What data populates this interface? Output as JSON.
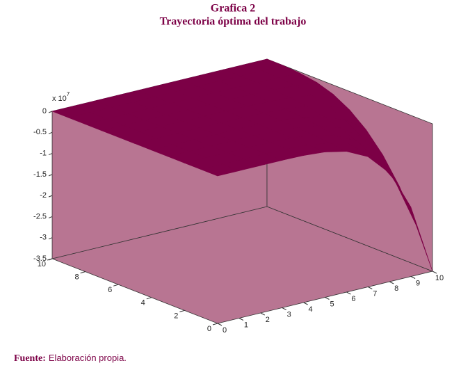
{
  "chart_data": {
    "type": "surface",
    "title": "Grafica 2",
    "subtitle": "Trayectoria óptima del trabajo",
    "z_multiplier": {
      "base": "x 10",
      "exponent": "7"
    },
    "x": [
      0,
      1,
      2,
      3,
      4,
      5,
      6,
      7,
      8,
      9,
      10
    ],
    "y": [
      0,
      1,
      2,
      3,
      4,
      5,
      6,
      7,
      8,
      9,
      10
    ],
    "z": [
      [
        0,
        0,
        0,
        0,
        -0.01,
        -0.05,
        -0.16,
        -0.41,
        -0.92,
        -1.86,
        -3.5
      ],
      [
        0,
        0,
        0,
        0,
        -0.01,
        -0.04,
        -0.12,
        -0.3,
        -0.67,
        -1.36,
        -2.55
      ],
      [
        0,
        0,
        0,
        0,
        -0.01,
        -0.03,
        -0.08,
        -0.21,
        -0.47,
        -0.95,
        -1.79
      ],
      [
        0,
        0,
        0,
        0,
        0,
        -0.02,
        -0.06,
        -0.14,
        -0.31,
        -0.64,
        -1.2
      ],
      [
        0,
        0,
        0,
        0,
        0,
        -0.01,
        -0.04,
        -0.09,
        -0.2,
        -0.4,
        -0.76
      ],
      [
        0,
        0,
        0,
        0,
        0,
        -0.01,
        -0.02,
        -0.05,
        -0.11,
        -0.23,
        -0.44
      ],
      [
        0,
        0,
        0,
        0,
        0,
        0,
        -0.01,
        -0.03,
        -0.06,
        -0.12,
        -0.22
      ],
      [
        0,
        0,
        0,
        0,
        0,
        0,
        0,
        -0.01,
        -0.02,
        -0.05,
        -0.09
      ],
      [
        0,
        0,
        0,
        0,
        0,
        0,
        0,
        0,
        -0.01,
        -0.01,
        -0.03
      ],
      [
        0,
        0,
        0,
        0,
        0,
        0,
        0,
        0,
        0,
        0,
        0
      ],
      [
        0,
        0,
        0,
        0,
        0,
        0,
        0,
        0,
        0,
        0,
        0
      ]
    ],
    "xlim": [
      0,
      10
    ],
    "ylim": [
      0,
      10
    ],
    "zlim": [
      -3.5,
      0
    ],
    "xticks": [
      0,
      1,
      2,
      3,
      4,
      5,
      6,
      7,
      8,
      9,
      10
    ],
    "yticks": [
      0,
      2,
      4,
      6,
      8,
      10
    ],
    "zticks": [
      0,
      -0.5,
      -1,
      -1.5,
      -2,
      -2.5,
      -3,
      -3.5
    ],
    "surface_color": "#7c0046",
    "wall_color": "#b87592"
  },
  "source": {
    "label": "Fuente:",
    "text": "Elaboración propia."
  }
}
